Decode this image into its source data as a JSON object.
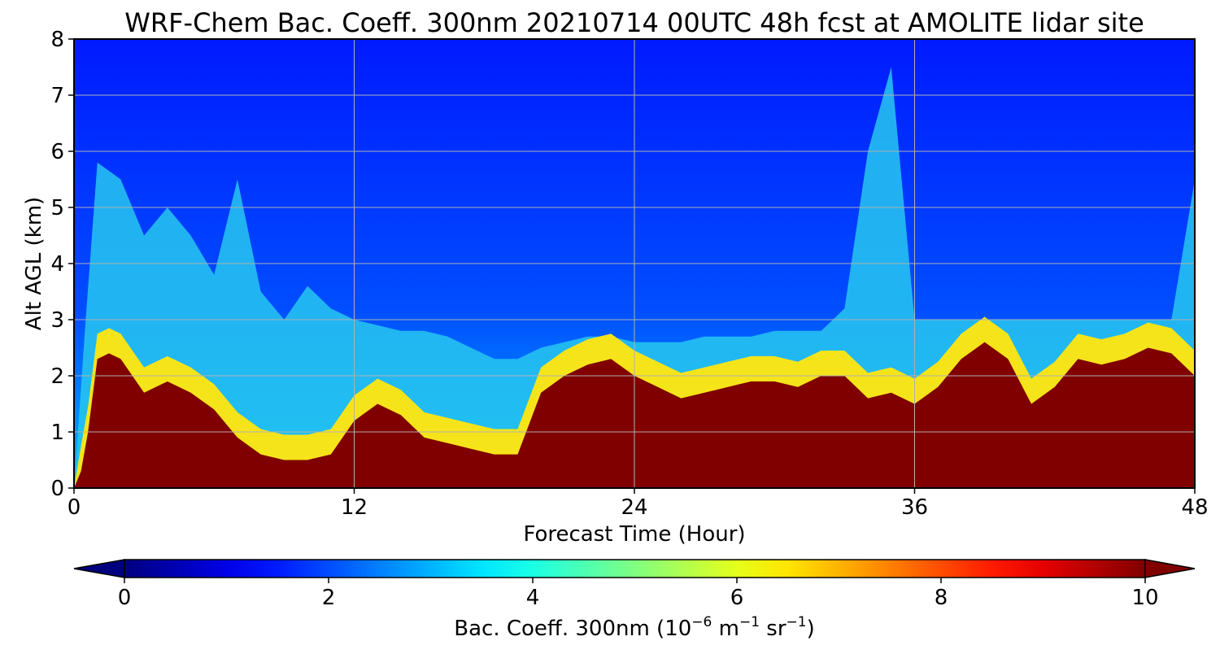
{
  "chart_data": {
    "type": "heatmap",
    "title": "WRF-Chem Bac. Coeff. 300nm  20210714 00UTC 48h fcst at AMOLITE lidar site",
    "xlabel": "Forecast Time (Hour)",
    "ylabel": "Alt AGL (km)",
    "xlim": [
      0,
      48
    ],
    "ylim": [
      0,
      8
    ],
    "xticks": [
      0,
      12,
      24,
      36,
      48
    ],
    "xtick_labels": [
      "0",
      "12",
      "24",
      "36",
      "48"
    ],
    "yticks": [
      0,
      1,
      2,
      3,
      4,
      5,
      6,
      7,
      8
    ],
    "ytick_labels": [
      "0",
      "1",
      "2",
      "3",
      "4",
      "5",
      "6",
      "7",
      "8"
    ],
    "grid": true,
    "colorscale": "jet",
    "colorbar": {
      "label_main": "Bac. Coeff. 300nm  (10",
      "label_exp1": "−6",
      "label_mid": " m",
      "label_exp2": "−1",
      "label_mid2": " sr",
      "label_exp3": "−1",
      "label_end": ")",
      "range": [
        0,
        10
      ],
      "ticks": [
        0,
        2,
        4,
        6,
        8,
        10
      ],
      "tick_labels": [
        "0",
        "2",
        "4",
        "6",
        "8",
        "10"
      ],
      "extend": "both"
    },
    "saturated_layer_top_km": {
      "x": [
        0,
        0.3,
        0.6,
        1,
        1.5,
        2,
        3,
        4,
        5,
        6,
        7,
        8,
        9,
        10,
        11,
        12,
        13,
        14,
        15,
        16,
        17,
        18,
        19,
        20,
        21,
        22,
        23,
        24,
        25,
        26,
        27,
        28,
        29,
        30,
        31,
        32,
        33,
        34,
        35,
        36,
        37,
        38,
        39,
        40,
        41,
        42,
        43,
        44,
        45,
        46,
        47,
        48
      ],
      "y": [
        0,
        0.3,
        1.0,
        2.3,
        2.4,
        2.3,
        1.7,
        1.9,
        1.7,
        1.4,
        0.9,
        0.6,
        0.5,
        0.5,
        0.6,
        1.2,
        1.5,
        1.3,
        0.9,
        0.8,
        0.7,
        0.6,
        0.6,
        1.7,
        2.0,
        2.2,
        2.3,
        2.0,
        1.8,
        1.6,
        1.7,
        1.8,
        1.9,
        1.9,
        1.8,
        2.0,
        2.0,
        1.6,
        1.7,
        1.5,
        1.8,
        2.3,
        2.6,
        2.3,
        1.5,
        1.8,
        2.3,
        2.2,
        2.3,
        2.5,
        2.4,
        2.0
      ]
    },
    "aerosol_layer_top_km": {
      "x": [
        0,
        0.5,
        1,
        2,
        3,
        4,
        5,
        6,
        7,
        8,
        9,
        10,
        11,
        12,
        13,
        14,
        15,
        16,
        17,
        18,
        19,
        20,
        21,
        22,
        23,
        24,
        25,
        26,
        27,
        28,
        29,
        30,
        31,
        32,
        33,
        34,
        35,
        36,
        37,
        38,
        39,
        40,
        41,
        42,
        43,
        44,
        45,
        46,
        47,
        48
      ],
      "y": [
        0,
        3.0,
        5.8,
        5.5,
        4.5,
        5.0,
        4.5,
        3.8,
        5.5,
        3.5,
        3.0,
        3.6,
        3.2,
        3.0,
        2.9,
        2.8,
        2.8,
        2.7,
        2.5,
        2.3,
        2.3,
        2.5,
        2.6,
        2.7,
        2.7,
        2.6,
        2.6,
        2.6,
        2.7,
        2.7,
        2.7,
        2.8,
        2.8,
        2.8,
        3.2,
        6.0,
        7.5,
        3.0,
        3.0,
        3.0,
        3.0,
        3.0,
        3.0,
        3.0,
        3.0,
        3.0,
        3.0,
        3.0,
        3.0,
        5.5
      ]
    },
    "max_value_units": 10
  }
}
